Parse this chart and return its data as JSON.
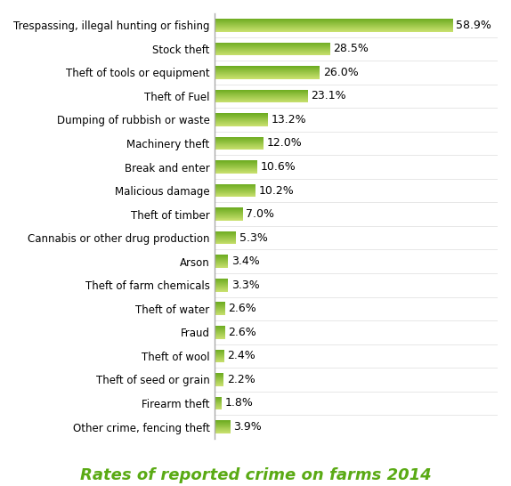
{
  "categories": [
    "Trespassing, illegal hunting or fishing",
    "Stock theft",
    "Theft of tools or equipment",
    "Theft of Fuel",
    "Dumping of rubbish or waste",
    "Machinery theft",
    "Break and enter",
    "Malicious damage",
    "Theft of timber",
    "Cannabis or other drug production",
    "Arson",
    "Theft of farm chemicals",
    "Theft of water",
    "Fraud",
    "Theft of wool",
    "Theft of seed or grain",
    "Firearm theft",
    "Other crime, fencing theft"
  ],
  "values": [
    58.9,
    28.5,
    26.0,
    23.1,
    13.2,
    12.0,
    10.6,
    10.2,
    7.0,
    5.3,
    3.4,
    3.3,
    2.6,
    2.6,
    2.4,
    2.2,
    1.8,
    3.9
  ],
  "bar_color_light": "#c8e06e",
  "bar_color_dark": "#6aaa1e",
  "bar_color_mid": "#8ec83a",
  "title": "Rates of reported crime on farms 2014",
  "title_color": "#5aaa14",
  "title_fontsize": 13,
  "label_fontsize": 8.5,
  "value_fontsize": 9,
  "background_color": "#ffffff",
  "xlim": [
    0,
    70
  ],
  "axis_line_color": "#aaaaaa"
}
